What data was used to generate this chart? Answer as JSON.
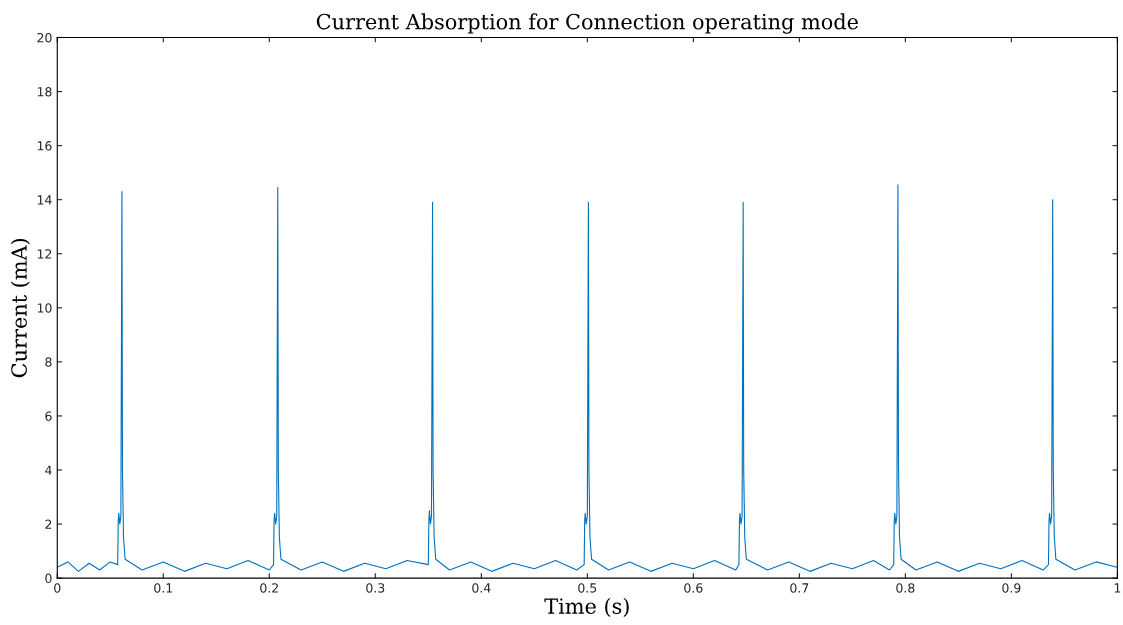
{
  "chart_data": {
    "type": "line",
    "title": "Current Absorption for Connection operating mode",
    "xlabel": "Time (s)",
    "ylabel": "Current (mA)",
    "xlim": [
      0,
      1
    ],
    "ylim": [
      0,
      20
    ],
    "xticks": [
      0,
      0.1,
      0.2,
      0.3,
      0.4,
      0.5,
      0.6,
      0.7,
      0.8,
      0.9,
      1
    ],
    "yticks": [
      0,
      2,
      4,
      6,
      8,
      10,
      12,
      14,
      16,
      18,
      20
    ],
    "grid": false,
    "marker": "none",
    "line_style": "solid",
    "series": [
      {
        "color": "#0072bd",
        "x": [
          0,
          0.01,
          0.02,
          0.03,
          0.04,
          0.05,
          0.057,
          0.0575,
          0.058,
          0.059,
          0.06,
          0.061,
          0.0615,
          0.0625,
          0.064,
          0.08,
          0.1,
          0.12,
          0.14,
          0.16,
          0.18,
          0.2,
          0.204,
          0.2045,
          0.205,
          0.206,
          0.207,
          0.208,
          0.2085,
          0.2095,
          0.211,
          0.23,
          0.25,
          0.27,
          0.29,
          0.31,
          0.33,
          0.35,
          0.3505,
          0.351,
          0.352,
          0.353,
          0.354,
          0.3545,
          0.3555,
          0.357,
          0.37,
          0.39,
          0.41,
          0.43,
          0.45,
          0.47,
          0.49,
          0.497,
          0.4975,
          0.498,
          0.499,
          0.5,
          0.501,
          0.5015,
          0.5025,
          0.504,
          0.52,
          0.54,
          0.56,
          0.58,
          0.6,
          0.62,
          0.64,
          0.643,
          0.6435,
          0.644,
          0.645,
          0.646,
          0.647,
          0.6475,
          0.6485,
          0.65,
          0.67,
          0.69,
          0.71,
          0.73,
          0.75,
          0.77,
          0.785,
          0.789,
          0.7895,
          0.79,
          0.791,
          0.792,
          0.793,
          0.7935,
          0.7945,
          0.796,
          0.81,
          0.83,
          0.85,
          0.87,
          0.89,
          0.91,
          0.93,
          0.935,
          0.9355,
          0.936,
          0.937,
          0.938,
          0.939,
          0.9395,
          0.9405,
          0.942,
          0.96,
          0.98,
          1
        ],
        "values": [
          0.4,
          0.6,
          0.25,
          0.55,
          0.3,
          0.6,
          0.5,
          2.1,
          2.4,
          2.0,
          2.3,
          14.3,
          4.0,
          1.5,
          0.7,
          0.3,
          0.6,
          0.25,
          0.55,
          0.35,
          0.65,
          0.3,
          0.5,
          2.1,
          2.4,
          2.0,
          2.3,
          14.45,
          4.0,
          1.5,
          0.7,
          0.3,
          0.6,
          0.25,
          0.55,
          0.35,
          0.65,
          0.5,
          2.1,
          2.5,
          2.0,
          2.3,
          13.9,
          4.0,
          1.5,
          0.7,
          0.3,
          0.6,
          0.25,
          0.55,
          0.35,
          0.65,
          0.3,
          0.5,
          2.1,
          2.4,
          2.0,
          2.3,
          13.9,
          4.0,
          1.5,
          0.7,
          0.3,
          0.6,
          0.25,
          0.55,
          0.35,
          0.65,
          0.3,
          0.5,
          2.1,
          2.4,
          2.0,
          2.3,
          13.9,
          4.0,
          1.5,
          0.7,
          0.3,
          0.6,
          0.25,
          0.55,
          0.35,
          0.65,
          0.3,
          0.5,
          2.1,
          2.4,
          2.0,
          2.3,
          14.55,
          4.2,
          1.5,
          0.7,
          0.3,
          0.6,
          0.25,
          0.55,
          0.35,
          0.65,
          0.3,
          0.5,
          2.1,
          2.4,
          2.0,
          2.3,
          14.0,
          4.0,
          1.5,
          0.7,
          0.3,
          0.6,
          0.4
        ]
      }
    ]
  }
}
